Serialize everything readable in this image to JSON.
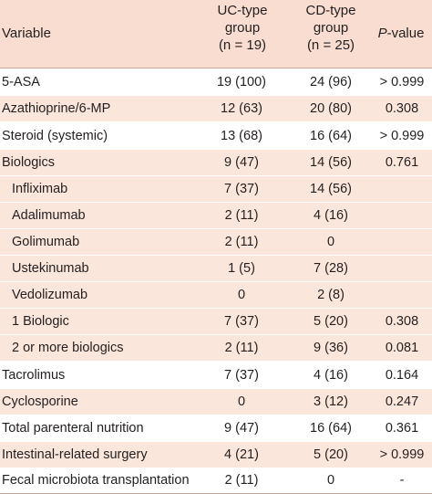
{
  "header": {
    "variable": "Variable",
    "uc_line1": "UC-type",
    "uc_line2": "group",
    "uc_line3": "(n = 19)",
    "cd_line1": "CD-type",
    "cd_line2": "group",
    "cd_line3": "(n = 25)",
    "p_italic": "P",
    "p_rest": "-value"
  },
  "rows": [
    {
      "variable": "5-ASA",
      "uc": "19 (100)",
      "cd": "24 (96)",
      "p": "> 0.999"
    },
    {
      "variable": "Azathioprine/6-MP",
      "uc": "12 (63)",
      "cd": "20 (80)",
      "p": "0.308"
    },
    {
      "variable": "Steroid (systemic)",
      "uc": "13 (68)",
      "cd": "16 (64)",
      "p": "> 0.999"
    },
    {
      "variable": "Biologics",
      "uc": "9 (47)",
      "cd": "14 (56)",
      "p": "0.761"
    },
    {
      "variable": "Infliximab",
      "uc": "7 (37)",
      "cd": "14 (56)",
      "p": ""
    },
    {
      "variable": "Adalimumab",
      "uc": "2 (11)",
      "cd": "4 (16)",
      "p": ""
    },
    {
      "variable": "Golimumab",
      "uc": "2 (11)",
      "cd": "0",
      "p": ""
    },
    {
      "variable": "Ustekinumab",
      "uc": "1 (5)",
      "cd": "7 (28)",
      "p": ""
    },
    {
      "variable": "Vedolizumab",
      "uc": "0",
      "cd": "2 (8)",
      "p": ""
    },
    {
      "variable": "1 Biologic",
      "uc": "7 (37)",
      "cd": "5 (20)",
      "p": "0.308"
    },
    {
      "variable": "2 or more biologics",
      "uc": "2 (11)",
      "cd": "9 (36)",
      "p": "0.081"
    },
    {
      "variable": "Tacrolimus",
      "uc": "7 (37)",
      "cd": "4 (16)",
      "p": "0.164"
    },
    {
      "variable": "Cyclosporine",
      "uc": "0",
      "cd": "3 (12)",
      "p": "0.247"
    },
    {
      "variable": "Total parenteral nutrition",
      "uc": "9 (47)",
      "cd": "16 (64)",
      "p": "0.361"
    },
    {
      "variable": "Intestinal-related surgery",
      "uc": "4 (21)",
      "cd": "5 (20)",
      "p": "> 0.999"
    },
    {
      "variable": "Fecal microbiota transplantation",
      "uc": "2 (11)",
      "cd": "0",
      "p": "-"
    }
  ]
}
